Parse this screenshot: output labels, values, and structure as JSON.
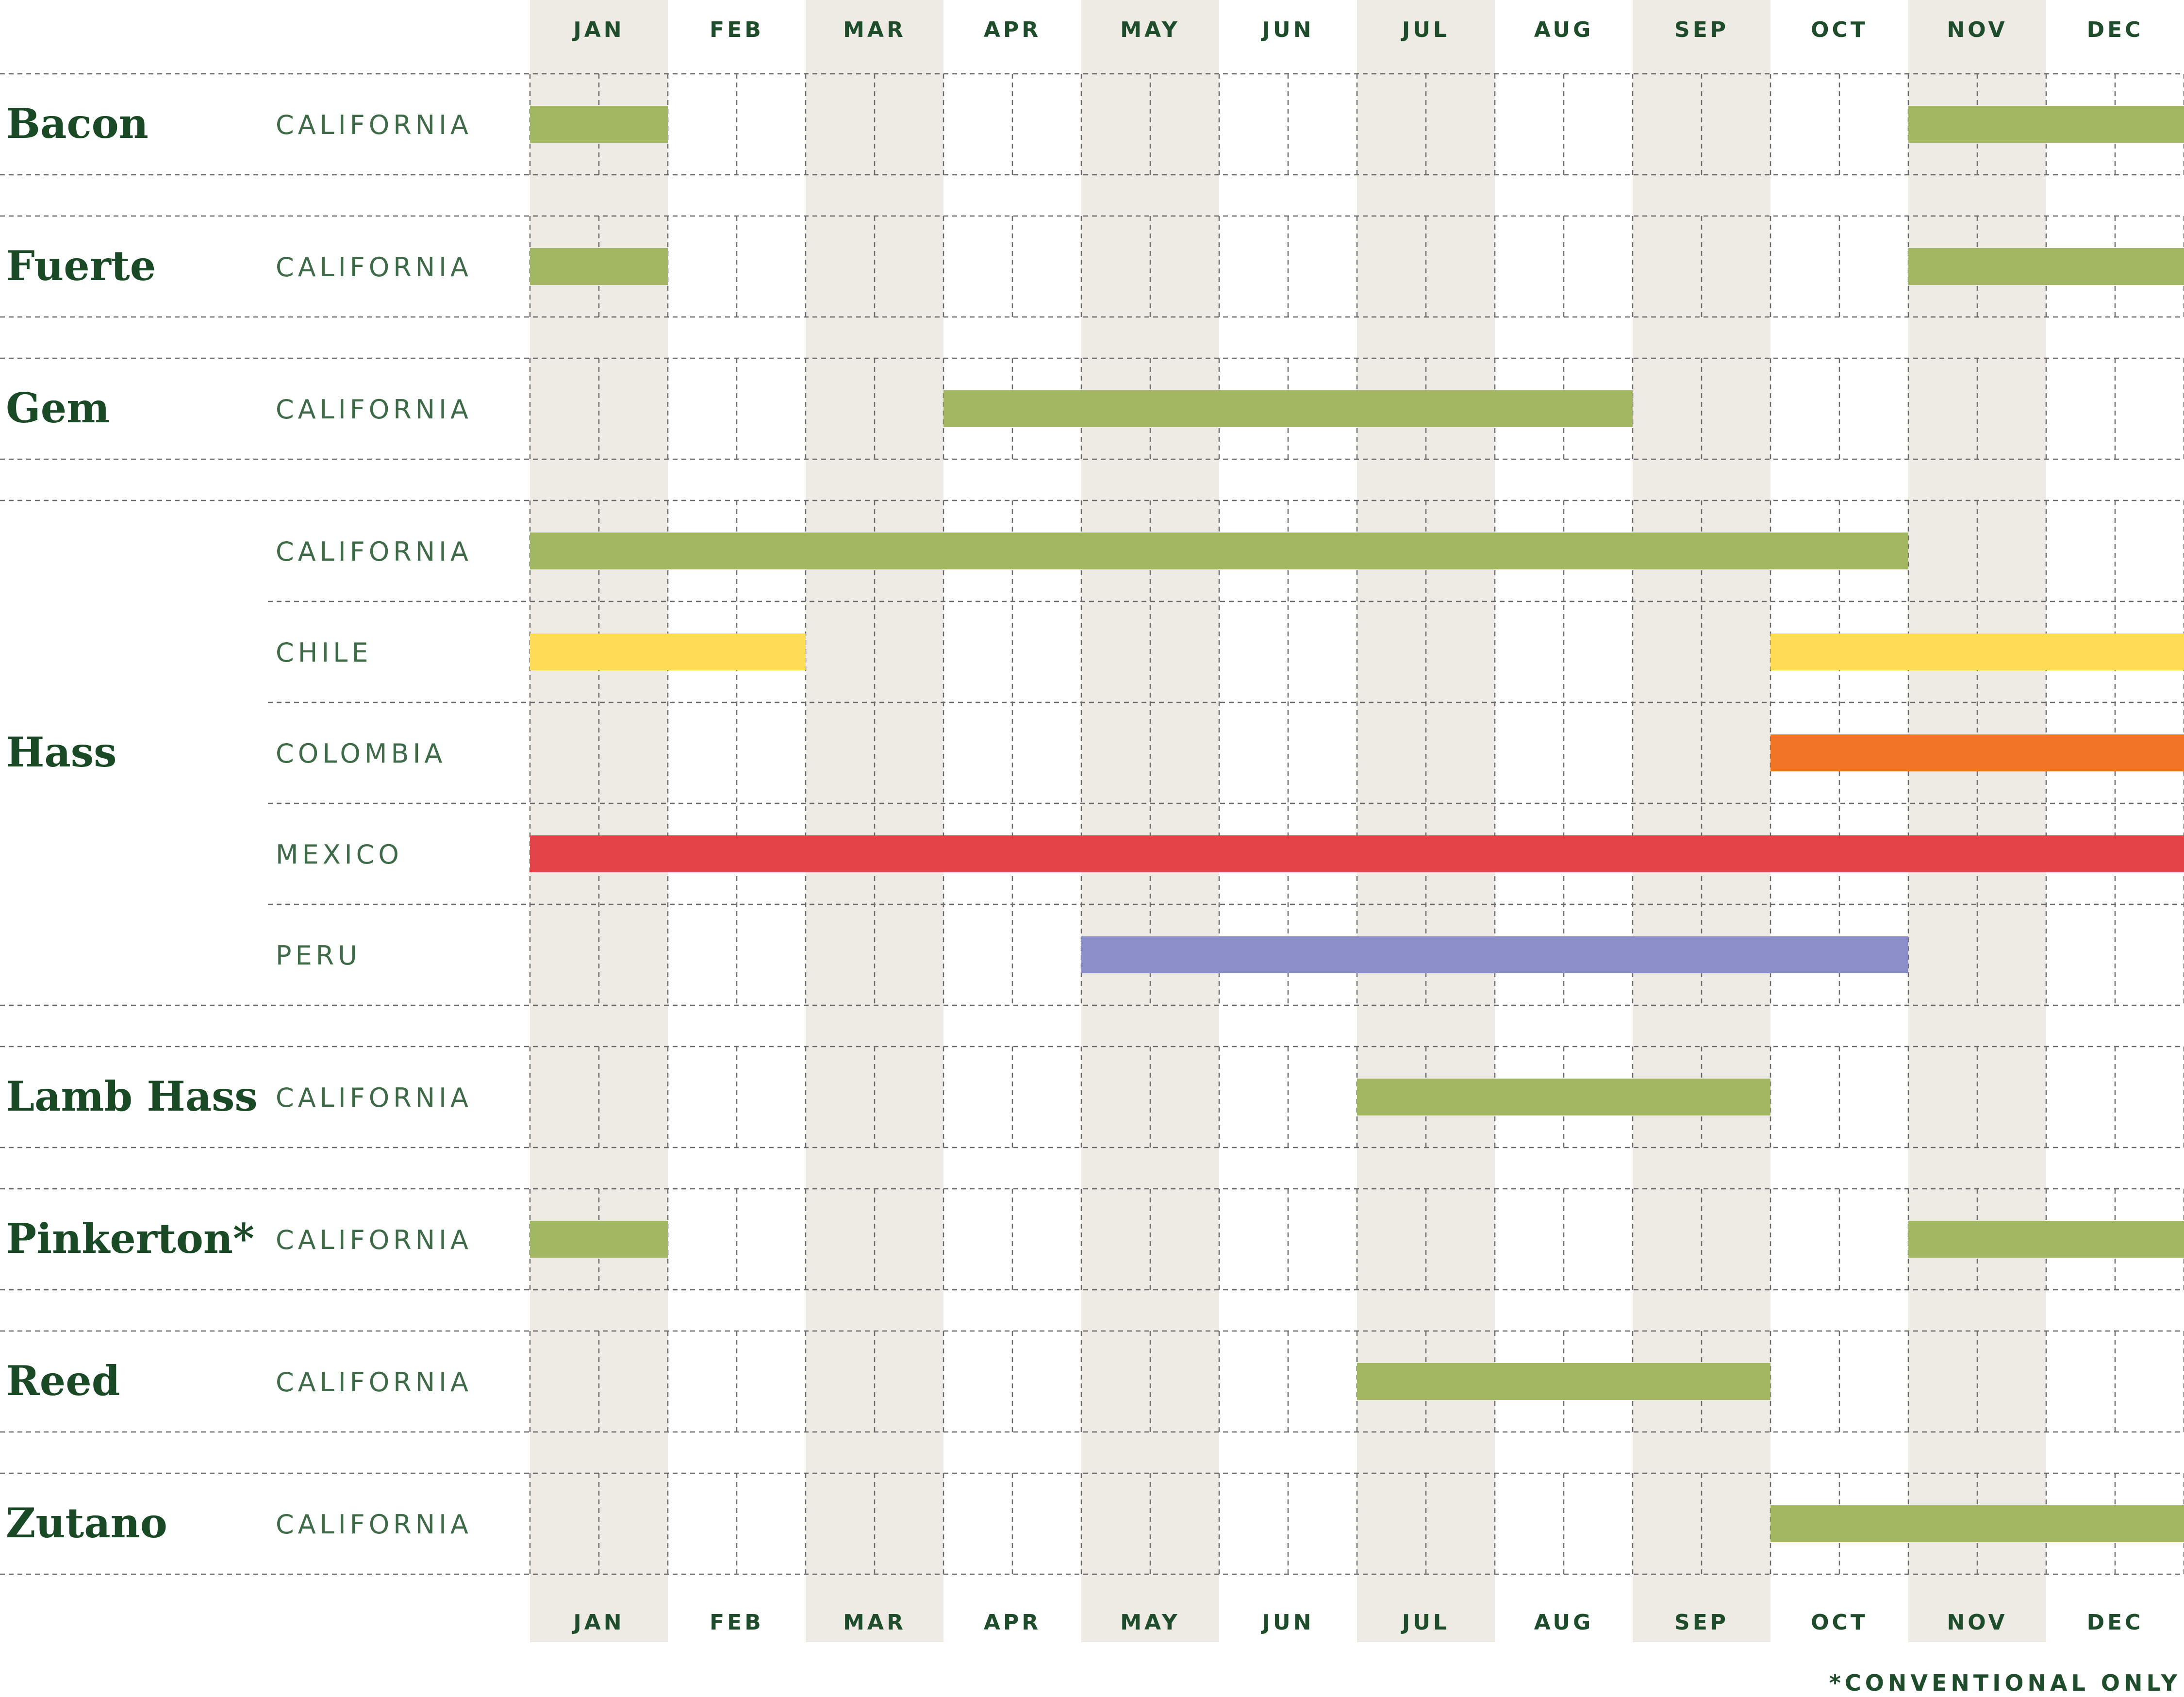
{
  "chart_data": {
    "type": "gantt",
    "months": [
      "JAN",
      "FEB",
      "MAR",
      "APR",
      "MAY",
      "JUN",
      "JUL",
      "AUG",
      "SEP",
      "OCT",
      "NOV",
      "DEC"
    ],
    "footnote": "*CONVENTIONAL ONLY",
    "colors": {
      "CALIFORNIA": "#a3b763",
      "CHILE": "#fedc55",
      "COLOMBIA": "#f27527",
      "MEXICO": "#e24346",
      "PERU": "#8b8ec8",
      "shaded_month": "#edebe3"
    },
    "varieties": [
      {
        "name": "Bacon",
        "origins": [
          {
            "origin": "CALIFORNIA",
            "periods": [
              [
                1,
                2
              ],
              [
                11,
                13
              ]
            ]
          }
        ]
      },
      {
        "name": "Fuerte",
        "origins": [
          {
            "origin": "CALIFORNIA",
            "periods": [
              [
                1,
                2
              ],
              [
                11,
                13
              ]
            ]
          }
        ]
      },
      {
        "name": "Gem",
        "origins": [
          {
            "origin": "CALIFORNIA",
            "periods": [
              [
                4,
                9
              ]
            ]
          }
        ]
      },
      {
        "name": "Hass",
        "origins": [
          {
            "origin": "CALIFORNIA",
            "periods": [
              [
                1,
                11
              ]
            ]
          },
          {
            "origin": "CHILE",
            "periods": [
              [
                1,
                3
              ],
              [
                10,
                13
              ]
            ]
          },
          {
            "origin": "COLOMBIA",
            "periods": [
              [
                10,
                13
              ]
            ]
          },
          {
            "origin": "MEXICO",
            "periods": [
              [
                1,
                13
              ]
            ]
          },
          {
            "origin": "PERU",
            "periods": [
              [
                5,
                11
              ]
            ]
          }
        ]
      },
      {
        "name": "Lamb Hass",
        "origins": [
          {
            "origin": "CALIFORNIA",
            "periods": [
              [
                7,
                10
              ]
            ]
          }
        ]
      },
      {
        "name": "Pinkerton*",
        "origins": [
          {
            "origin": "CALIFORNIA",
            "periods": [
              [
                1,
                2
              ],
              [
                11,
                13
              ]
            ]
          }
        ]
      },
      {
        "name": "Reed",
        "origins": [
          {
            "origin": "CALIFORNIA",
            "periods": [
              [
                7,
                10
              ]
            ]
          }
        ]
      },
      {
        "name": "Zutano",
        "origins": [
          {
            "origin": "CALIFORNIA",
            "periods": [
              [
                10,
                13
              ]
            ]
          }
        ]
      }
    ]
  }
}
